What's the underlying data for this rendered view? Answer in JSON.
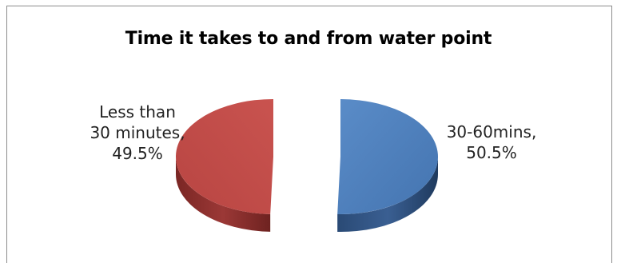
{
  "chart_data": {
    "type": "pie",
    "title": "Time it takes to and from water point",
    "slices": [
      {
        "name": "30-60mins",
        "value": 50.5,
        "label_lines": [
          "30-60mins,",
          "50.5%"
        ],
        "color": "#4f81bd",
        "side_color": "#2b4a73"
      },
      {
        "name": "Less than 30 minutes",
        "value": 49.5,
        "label_lines": [
          "Less than",
          "30 minutes,",
          "49.5%"
        ],
        "color": "#c0504d",
        "side_color": "#7f2b29"
      }
    ],
    "style": "3d-exploded",
    "legend": "none"
  }
}
